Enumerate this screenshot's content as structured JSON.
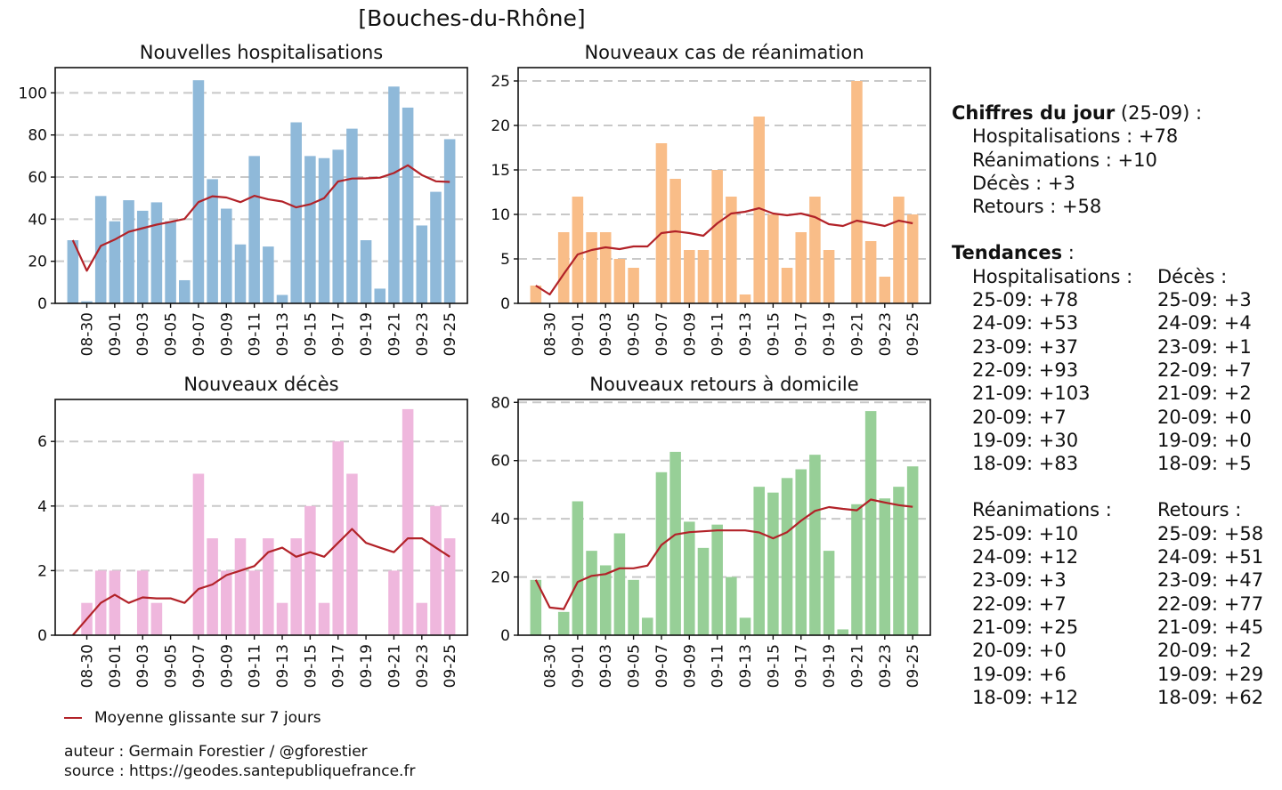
{
  "suptitle": "[Bouches-du-Rhône]",
  "colors": {
    "hosp": "#8fb9d9",
    "rea": "#f9bd88",
    "dc": "#efb7dd",
    "rad": "#97cf97",
    "avg": "#b22228",
    "grid": "#c8c8c8"
  },
  "chart_data": [
    {
      "id": "hosp",
      "type": "bar",
      "title": "Nouvelles hospitalisations",
      "dates": [
        "08-29",
        "08-30",
        "08-31",
        "09-01",
        "09-02",
        "09-03",
        "09-04",
        "09-05",
        "09-06",
        "09-07",
        "09-08",
        "09-09",
        "09-10",
        "09-11",
        "09-12",
        "09-13",
        "09-14",
        "09-15",
        "09-16",
        "09-17",
        "09-18",
        "09-19",
        "09-20",
        "09-21",
        "09-22",
        "09-23",
        "09-24",
        "09-25"
      ],
      "values": [
        30,
        1,
        51,
        39,
        49,
        44,
        48,
        39,
        11,
        106,
        59,
        45,
        28,
        70,
        27,
        4,
        86,
        70,
        69,
        73,
        83,
        30,
        7,
        103,
        93,
        37,
        53,
        78
      ],
      "moving_average": [
        30,
        15.5,
        27.3,
        30.3,
        34,
        35.7,
        37.4,
        38.7,
        40.1,
        48.1,
        50.9,
        50.3,
        48.1,
        51.1,
        49.4,
        48.4,
        45.6,
        47.1,
        50.0,
        57.9,
        59.3,
        59.4,
        59.7,
        61.9,
        65.6,
        61.0,
        58.0,
        57.7
      ],
      "ylim": [
        0,
        112
      ],
      "yticks": [
        0,
        20,
        40,
        60,
        80,
        100
      ],
      "xtick_labels": [
        "08-30",
        "09-01",
        "09-03",
        "09-05",
        "09-07",
        "09-09",
        "09-11",
        "09-13",
        "09-15",
        "09-17",
        "09-19",
        "09-21",
        "09-23",
        "09-25"
      ],
      "grid": true
    },
    {
      "id": "rea",
      "type": "bar",
      "title": "Nouveaux cas de réanimation",
      "dates": [
        "08-29",
        "08-30",
        "08-31",
        "09-01",
        "09-02",
        "09-03",
        "09-04",
        "09-05",
        "09-06",
        "09-07",
        "09-08",
        "09-09",
        "09-10",
        "09-11",
        "09-12",
        "09-13",
        "09-14",
        "09-15",
        "09-16",
        "09-17",
        "09-18",
        "09-19",
        "09-20",
        "09-21",
        "09-22",
        "09-23",
        "09-24",
        "09-25"
      ],
      "values": [
        2,
        0,
        8,
        12,
        8,
        8,
        5,
        4,
        0,
        18,
        14,
        6,
        6,
        15,
        12,
        1,
        21,
        10,
        4,
        8,
        12,
        6,
        0,
        25,
        7,
        3,
        12,
        10
      ],
      "moving_average": [
        2,
        1,
        3.3,
        5.5,
        6,
        6.3,
        6.1,
        6.4,
        6.4,
        7.9,
        8.1,
        7.9,
        7.6,
        9,
        10.1,
        10.3,
        10.7,
        10.1,
        9.9,
        10.1,
        9.7,
        8.9,
        8.7,
        9.3,
        9.0,
        8.7,
        9.3,
        9.0
      ],
      "ylim": [
        0,
        26.5
      ],
      "yticks": [
        0,
        5,
        10,
        15,
        20,
        25
      ],
      "xtick_labels": [
        "08-30",
        "09-01",
        "09-03",
        "09-05",
        "09-07",
        "09-09",
        "09-11",
        "09-13",
        "09-15",
        "09-17",
        "09-19",
        "09-21",
        "09-23",
        "09-25"
      ],
      "grid": true
    },
    {
      "id": "dc",
      "type": "bar",
      "title": "Nouveaux décès",
      "dates": [
        "08-29",
        "08-30",
        "08-31",
        "09-01",
        "09-02",
        "09-03",
        "09-04",
        "09-05",
        "09-06",
        "09-07",
        "09-08",
        "09-09",
        "09-10",
        "09-11",
        "09-12",
        "09-13",
        "09-14",
        "09-15",
        "09-16",
        "09-17",
        "09-18",
        "09-19",
        "09-20",
        "09-21",
        "09-22",
        "09-23",
        "09-24",
        "09-25"
      ],
      "values": [
        0,
        1,
        2,
        2,
        0,
        2,
        1,
        0,
        0,
        5,
        3,
        2,
        3,
        2,
        3,
        1,
        3,
        4,
        1,
        6,
        5,
        0,
        0,
        2,
        7,
        1,
        4,
        3
      ],
      "moving_average": [
        0,
        0.5,
        1,
        1.25,
        1,
        1.17,
        1.14,
        1.14,
        1.0,
        1.43,
        1.57,
        1.86,
        2.0,
        2.14,
        2.57,
        2.71,
        2.43,
        2.57,
        2.43,
        2.86,
        3.29,
        2.86,
        2.71,
        2.57,
        3.0,
        3.0,
        2.71,
        2.43
      ],
      "ylim": [
        0,
        7.3
      ],
      "yticks": [
        0,
        2,
        4,
        6
      ],
      "xtick_labels": [
        "08-30",
        "09-01",
        "09-03",
        "09-05",
        "09-07",
        "09-09",
        "09-11",
        "09-13",
        "09-15",
        "09-17",
        "09-19",
        "09-21",
        "09-23",
        "09-25"
      ],
      "grid": true
    },
    {
      "id": "rad",
      "type": "bar",
      "title": "Nouveaux retours à domicile",
      "dates": [
        "08-29",
        "08-30",
        "08-31",
        "09-01",
        "09-02",
        "09-03",
        "09-04",
        "09-05",
        "09-06",
        "09-07",
        "09-08",
        "09-09",
        "09-10",
        "09-11",
        "09-12",
        "09-13",
        "09-14",
        "09-15",
        "09-16",
        "09-17",
        "09-18",
        "09-19",
        "09-20",
        "09-21",
        "09-22",
        "09-23",
        "09-24",
        "09-25"
      ],
      "values": [
        19,
        0,
        8,
        46,
        29,
        24,
        35,
        19,
        6,
        56,
        63,
        39,
        30,
        38,
        20,
        6,
        51,
        49,
        54,
        57,
        62,
        29,
        2,
        45,
        77,
        47,
        51,
        58
      ],
      "moving_average": [
        19,
        9.5,
        9,
        18.3,
        20.4,
        21,
        23,
        23,
        23.9,
        31.0,
        34.6,
        35.4,
        35.7,
        36.0,
        36.0,
        36.0,
        35.3,
        33.3,
        35.4,
        39.3,
        42.7,
        44.0,
        43.4,
        42.9,
        46.6,
        45.6,
        44.7,
        44.1
      ],
      "ylim": [
        0,
        81
      ],
      "yticks": [
        0,
        20,
        40,
        60,
        80
      ],
      "xtick_labels": [
        "08-30",
        "09-01",
        "09-03",
        "09-05",
        "09-07",
        "09-09",
        "09-11",
        "09-13",
        "09-15",
        "09-17",
        "09-19",
        "09-21",
        "09-23",
        "09-25"
      ],
      "grid": true
    }
  ],
  "legend": {
    "label": "Moyenne glissante sur 7 jours"
  },
  "credits": {
    "author": "auteur : Germain Forestier / @gforestier",
    "source": "source : https://geodes.santepubliquefrance.fr"
  },
  "side": {
    "today_title": "Chiffres du jour",
    "today_date": " (25-09) :",
    "today": [
      "Hospitalisations : +78",
      "Réanimations : +10",
      "Décès : +3",
      "Retours : +58"
    ],
    "trends_title": "Tendances",
    "trends_colon": " :",
    "block1": {
      "left_header": "Hospitalisations :",
      "right_header": "Décès :",
      "left": [
        "25-09: +78",
        "24-09: +53",
        "23-09: +37",
        "22-09: +93",
        "21-09: +103",
        "20-09: +7",
        "19-09: +30",
        "18-09: +83"
      ],
      "right": [
        "25-09: +3",
        "24-09: +4",
        "23-09: +1",
        "22-09: +7",
        "21-09: +2",
        "20-09: +0",
        "19-09: +0",
        "18-09: +5"
      ]
    },
    "block2": {
      "left_header": "Réanimations :",
      "right_header": "Retours :",
      "left": [
        "25-09: +10",
        "24-09: +12",
        "23-09: +3",
        "22-09: +7",
        "21-09: +25",
        "20-09: +0",
        "19-09: +6",
        "18-09: +12"
      ],
      "right": [
        "25-09: +58",
        "24-09: +51",
        "23-09: +47",
        "22-09: +77",
        "21-09: +45",
        "20-09: +2",
        "19-09: +29",
        "18-09: +62"
      ]
    }
  }
}
